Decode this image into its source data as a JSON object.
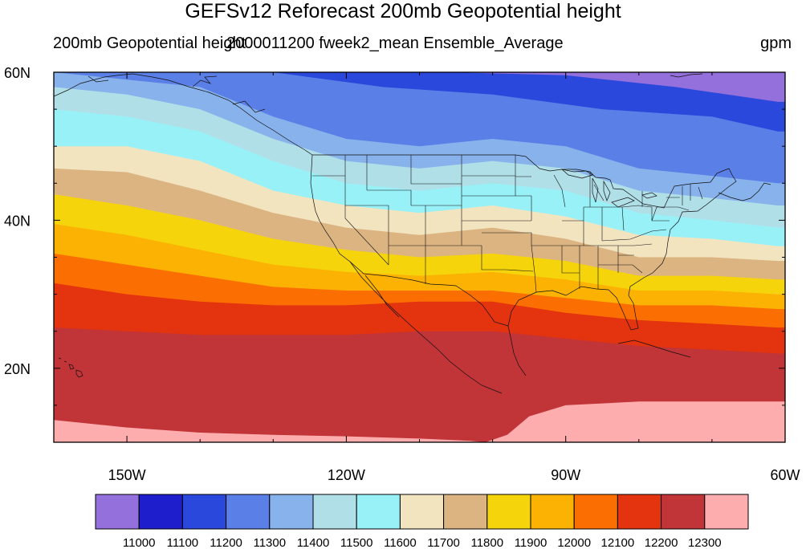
{
  "title": "GEFSv12 Reforecast 200mb Geopotential height",
  "subtitle_left": "200mb Geopotential height",
  "subtitle_center": "2000011200 fweek2_mean Ensemble_Average",
  "subtitle_right": "gpm",
  "map": {
    "projection": "cylindrical-equidistant",
    "lon_range": [
      -160,
      -60
    ],
    "lat_range": [
      10,
      60
    ],
    "lon_ticks": [
      "150W",
      "120W",
      "90W",
      "60W"
    ],
    "lat_ticks": [
      "60N",
      "40N",
      "20N"
    ]
  },
  "colorbar": {
    "levels": [
      "11000",
      "11100",
      "11200",
      "11300",
      "11400",
      "11500",
      "11600",
      "11700",
      "11800",
      "11900",
      "12000",
      "12100",
      "12200",
      "12300"
    ],
    "colors": [
      "#9370db",
      "#1e1ecd",
      "#2b48dc",
      "#5a7fe6",
      "#87b2eb",
      "#b1dfe8",
      "#99f1f8",
      "#f3e4c0",
      "#dcb482",
      "#f5d40c",
      "#fbb202",
      "#fb6f02",
      "#e3330f",
      "#c13437",
      "#feadae"
    ]
  },
  "chart_data": {
    "type": "heatmap",
    "title": "GEFSv12 Reforecast 200mb Geopotential height",
    "variable": "200mb Geopotential height",
    "units": "gpm",
    "x_range_deg": [
      -160,
      -60
    ],
    "y_range_deg": [
      10,
      60
    ],
    "contour_interval": 100,
    "contour_levels": [
      11000,
      11100,
      11200,
      11300,
      11400,
      11500,
      11600,
      11700,
      11800,
      11900,
      12000,
      12100,
      12200,
      12300
    ],
    "contour_lines": [
      {
        "level": 11100,
        "points": [
          [
            -106,
            60
          ],
          [
            -90,
            59.6
          ],
          [
            -75,
            58
          ],
          [
            -61,
            56
          ]
        ]
      },
      {
        "level": 11200,
        "points": [
          [
            -130,
            60
          ],
          [
            -115,
            58
          ],
          [
            -100,
            57
          ],
          [
            -85,
            55
          ],
          [
            -70,
            54
          ],
          [
            -61,
            52
          ]
        ]
      },
      {
        "level": 11300,
        "points": [
          [
            -160,
            60
          ],
          [
            -150,
            59
          ],
          [
            -140,
            58
          ],
          [
            -130,
            54
          ],
          [
            -120,
            51
          ],
          [
            -110,
            50
          ],
          [
            -100,
            51
          ],
          [
            -90,
            50
          ],
          [
            -80,
            47
          ],
          [
            -70,
            46
          ],
          [
            -61,
            45
          ]
        ]
      },
      {
        "level": 11400,
        "points": [
          [
            -160,
            58
          ],
          [
            -150,
            57
          ],
          [
            -140,
            55
          ],
          [
            -130,
            51
          ],
          [
            -120,
            48
          ],
          [
            -110,
            47
          ],
          [
            -100,
            48
          ],
          [
            -90,
            47
          ],
          [
            -80,
            44
          ],
          [
            -70,
            43
          ],
          [
            -61,
            42
          ]
        ]
      },
      {
        "level": 11500,
        "points": [
          [
            -160,
            55
          ],
          [
            -150,
            54
          ],
          [
            -140,
            52
          ],
          [
            -130,
            48
          ],
          [
            -120,
            45
          ],
          [
            -110,
            44
          ],
          [
            -100,
            45
          ],
          [
            -90,
            44
          ],
          [
            -80,
            41
          ],
          [
            -70,
            40
          ],
          [
            -61,
            39
          ]
        ]
      },
      {
        "level": 11600,
        "points": [
          [
            -160,
            50
          ],
          [
            -150,
            50
          ],
          [
            -140,
            48
          ],
          [
            -130,
            44
          ],
          [
            -120,
            42
          ],
          [
            -110,
            41
          ],
          [
            -100,
            42
          ],
          [
            -90,
            40.5
          ],
          [
            -80,
            38
          ],
          [
            -70,
            37.5
          ],
          [
            -61,
            36.5
          ]
        ]
      },
      {
        "level": 11700,
        "points": [
          [
            -160,
            47
          ],
          [
            -150,
            46.5
          ],
          [
            -140,
            44
          ],
          [
            -130,
            41
          ],
          [
            -120,
            39
          ],
          [
            -110,
            38
          ],
          [
            -100,
            39
          ],
          [
            -90,
            37.5
          ],
          [
            -80,
            35
          ],
          [
            -70,
            35
          ],
          [
            -61,
            34.5
          ]
        ]
      },
      {
        "level": 11800,
        "points": [
          [
            -160,
            43.5
          ],
          [
            -150,
            42
          ],
          [
            -140,
            40
          ],
          [
            -130,
            37.5
          ],
          [
            -120,
            36
          ],
          [
            -110,
            35
          ],
          [
            -100,
            35.5
          ],
          [
            -90,
            34.5
          ],
          [
            -80,
            32.5
          ],
          [
            -70,
            32.5
          ],
          [
            -61,
            32
          ]
        ]
      },
      {
        "level": 11900,
        "points": [
          [
            -160,
            39.5
          ],
          [
            -150,
            38
          ],
          [
            -140,
            36
          ],
          [
            -130,
            34
          ],
          [
            -120,
            33
          ],
          [
            -110,
            32.5
          ],
          [
            -100,
            33
          ],
          [
            -90,
            32
          ],
          [
            -80,
            30.5
          ],
          [
            -70,
            30.5
          ],
          [
            -61,
            30
          ]
        ]
      },
      {
        "level": 12000,
        "points": [
          [
            -160,
            35.5
          ],
          [
            -150,
            34
          ],
          [
            -140,
            32.5
          ],
          [
            -130,
            31
          ],
          [
            -120,
            30.5
          ],
          [
            -110,
            30.5
          ],
          [
            -100,
            30.5
          ],
          [
            -90,
            29.5
          ],
          [
            -80,
            28.5
          ],
          [
            -70,
            28.5
          ],
          [
            -61,
            28
          ]
        ]
      },
      {
        "level": 12100,
        "points": [
          [
            -160,
            31.5
          ],
          [
            -150,
            30
          ],
          [
            -140,
            29
          ],
          [
            -130,
            28.5
          ],
          [
            -120,
            28.5
          ],
          [
            -110,
            29
          ],
          [
            -100,
            29
          ],
          [
            -90,
            27.5
          ],
          [
            -80,
            26.5
          ],
          [
            -70,
            26
          ],
          [
            -61,
            25.5
          ]
        ]
      },
      {
        "level": 12200,
        "points": [
          [
            -160,
            25.5
          ],
          [
            -150,
            25
          ],
          [
            -140,
            24.5
          ],
          [
            -130,
            24.5
          ],
          [
            -120,
            24.5
          ],
          [
            -110,
            25
          ],
          [
            -100,
            25
          ],
          [
            -90,
            24
          ],
          [
            -80,
            23
          ],
          [
            -70,
            22.5
          ],
          [
            -61,
            22
          ]
        ]
      },
      {
        "level": 12300,
        "points": [
          [
            -160,
            13
          ],
          [
            -150,
            12
          ],
          [
            -140,
            11.3
          ],
          [
            -130,
            11
          ],
          [
            -120,
            10.8
          ],
          [
            -110,
            10.5
          ],
          [
            -103,
            10.2
          ],
          [
            -101,
            10
          ],
          [
            -98,
            11
          ],
          [
            -95,
            13.5
          ],
          [
            -90,
            15
          ],
          [
            -80,
            15.5
          ],
          [
            -70,
            15.5
          ],
          [
            -61,
            15.5
          ]
        ]
      }
    ]
  }
}
